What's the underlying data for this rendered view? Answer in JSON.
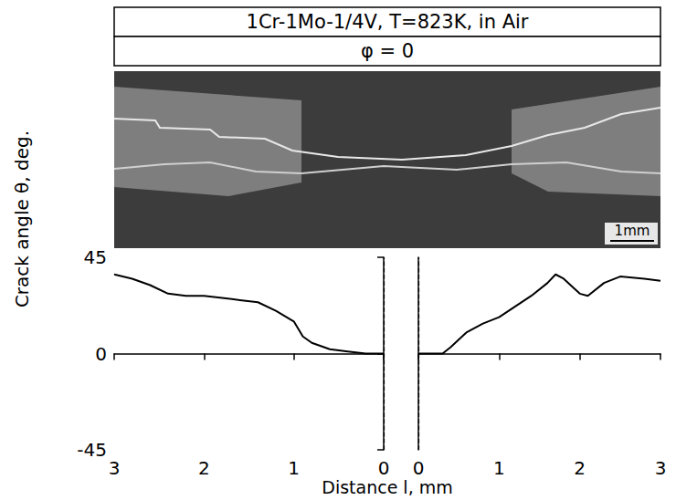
{
  "header": {
    "title": "1Cr-1Mo-1/4V, T=823K, in Air",
    "subtitle": "φ = 0"
  },
  "photo": {
    "scale_label": "1mm"
  },
  "ylabel": "Crack angle θ, deg.",
  "xlabel": "Distance l, mm",
  "chart_data": [
    {
      "type": "line",
      "xlim": [
        3,
        0
      ],
      "xticks": [
        0,
        1,
        2,
        3
      ],
      "ylim": [
        -45,
        45
      ],
      "yticks": [
        -45,
        0,
        45
      ],
      "grid": false,
      "series": [
        {
          "color": "#000000",
          "line_style": "solid",
          "marker": "none",
          "x": [
            3.0,
            2.8,
            2.6,
            2.4,
            2.2,
            2.0,
            1.8,
            1.6,
            1.4,
            1.2,
            1.0,
            0.9,
            0.8,
            0.6,
            0.4,
            0.2,
            0.0
          ],
          "values": [
            37,
            35,
            32,
            28,
            27,
            27,
            26,
            25,
            24,
            20,
            15,
            8,
            5,
            2,
            1,
            0,
            0
          ]
        }
      ]
    },
    {
      "type": "line",
      "xlim": [
        0,
        3
      ],
      "xticks": [
        0,
        1,
        2,
        3
      ],
      "ylim": [
        -45,
        45
      ],
      "yticks": [
        -45,
        0,
        45
      ],
      "grid": false,
      "tick_labels": "x",
      "series": [
        {
          "color": "#000000",
          "line_style": "solid",
          "marker": "none",
          "x": [
            0.0,
            0.3,
            0.4,
            0.6,
            0.8,
            1.0,
            1.2,
            1.4,
            1.6,
            1.7,
            1.8,
            2.0,
            2.1,
            2.3,
            2.5,
            2.8,
            3.0
          ],
          "values": [
            0,
            0,
            3,
            10,
            14,
            17,
            22,
            27,
            33,
            37,
            35,
            28,
            27,
            33,
            36,
            35,
            34
          ]
        }
      ]
    }
  ]
}
